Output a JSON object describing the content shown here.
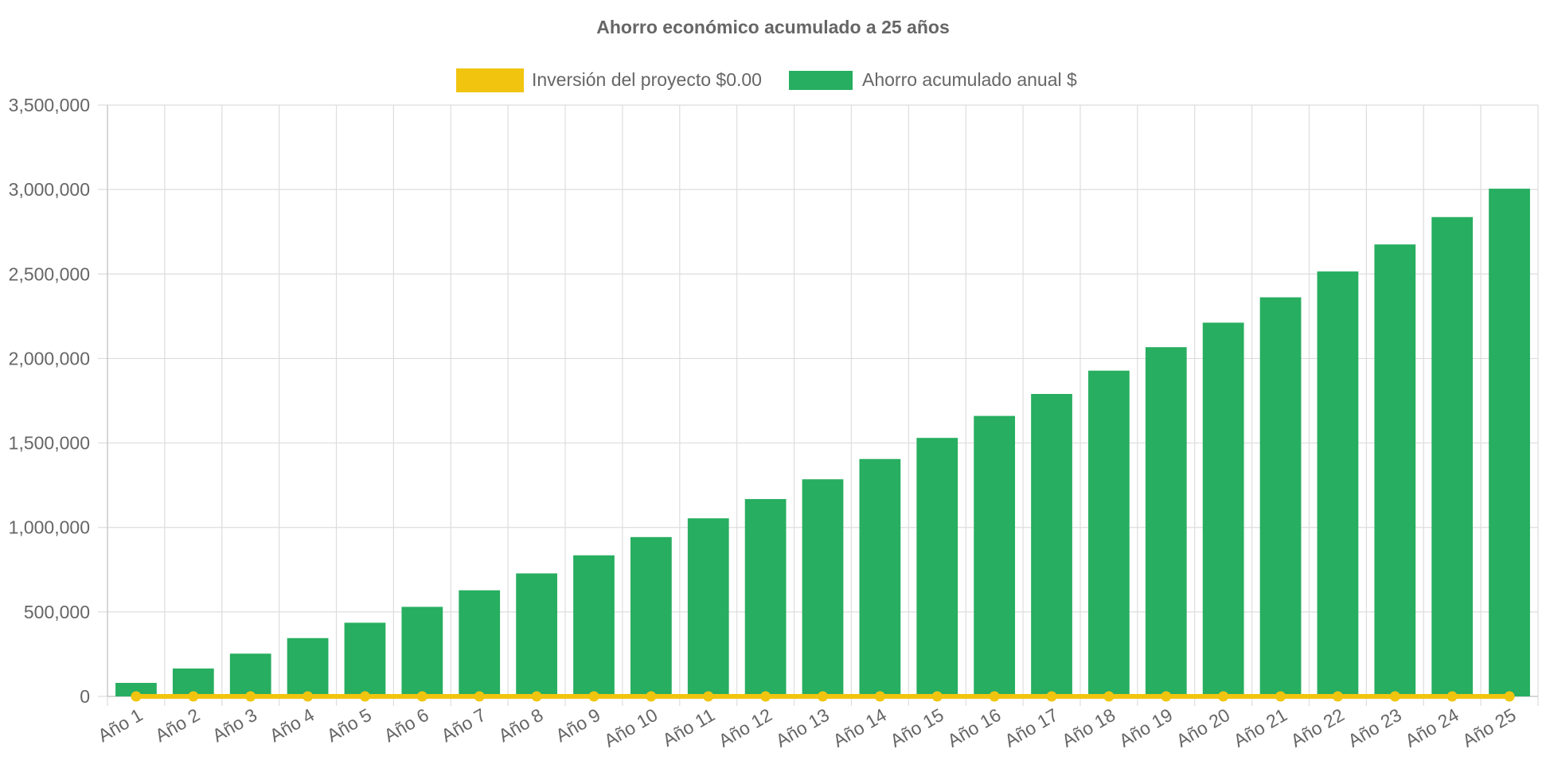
{
  "chart_data": {
    "type": "bar",
    "title": "Ahorro económico acumulado a 25 años",
    "xlabel": "",
    "ylabel": "",
    "ylim": [
      0,
      3500000
    ],
    "yticks": [
      0,
      500000,
      1000000,
      1500000,
      2000000,
      2500000,
      3000000,
      3500000
    ],
    "ytick_labels": [
      "0",
      "500,000",
      "1,000,000",
      "1,500,000",
      "2,000,000",
      "2,500,000",
      "3,000,000",
      "3,500,000"
    ],
    "grid": true,
    "legend_position": "top-center",
    "categories": [
      "Año 1",
      "Año 2",
      "Año 3",
      "Año 4",
      "Año 5",
      "Año 6",
      "Año 7",
      "Año 8",
      "Año 9",
      "Año 10",
      "Año 11",
      "Año 12",
      "Año 13",
      "Año 14",
      "Año 15",
      "Año 16",
      "Año 17",
      "Año 18",
      "Año 19",
      "Año 20",
      "Año 21",
      "Año 22",
      "Año 23",
      "Año 24",
      "Año 25"
    ],
    "series": [
      {
        "name": "Inversión del proyecto $0.00",
        "type": "line",
        "color": "#f1c40f",
        "values": [
          0,
          0,
          0,
          0,
          0,
          0,
          0,
          0,
          0,
          0,
          0,
          0,
          0,
          0,
          0,
          0,
          0,
          0,
          0,
          0,
          0,
          0,
          0,
          0,
          0
        ]
      },
      {
        "name": "Ahorro acumulado anual $",
        "type": "bar",
        "color": "#27ae60",
        "values": [
          80000,
          165000,
          253000,
          345000,
          436000,
          530000,
          628000,
          728000,
          835000,
          943000,
          1054000,
          1168000,
          1285000,
          1405000,
          1530000,
          1660000,
          1790000,
          1928000,
          2067000,
          2212000,
          2362000,
          2515000,
          2675000,
          2837000,
          3005000
        ]
      }
    ]
  }
}
